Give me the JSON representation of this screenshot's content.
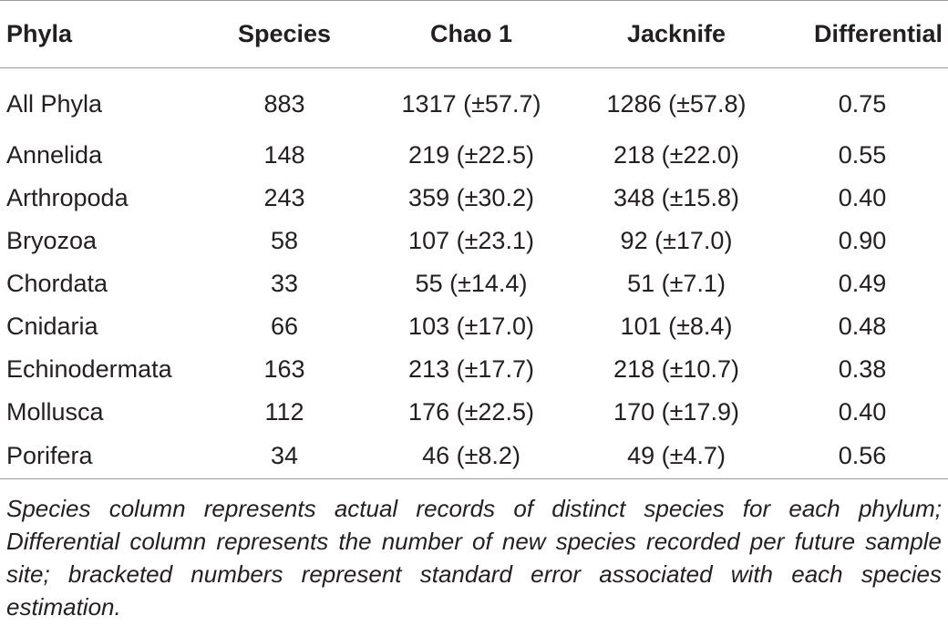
{
  "table": {
    "headers": [
      "Phyla",
      "Species",
      "Chao 1",
      "Jacknife",
      "Differential"
    ],
    "rows": [
      [
        "All Phyla",
        "883",
        "1317 (±57.7)",
        "1286 (±57.8)",
        "0.75"
      ],
      [
        "Annelida",
        "148",
        "219 (±22.5)",
        "218 (±22.0)",
        "0.55"
      ],
      [
        "Arthropoda",
        "243",
        "359 (±30.2)",
        "348 (±15.8)",
        "0.40"
      ],
      [
        "Bryozoa",
        "58",
        "107 (±23.1)",
        "92 (±17.0)",
        "0.90"
      ],
      [
        "Chordata",
        "33",
        "55 (±14.4)",
        "51 (±7.1)",
        "0.49"
      ],
      [
        "Cnidaria",
        "66",
        "103 (±17.0)",
        "101 (±8.4)",
        "0.48"
      ],
      [
        "Echinodermata",
        "163",
        "213 (±17.7)",
        "218 (±10.7)",
        "0.38"
      ],
      [
        "Mollusca",
        "112",
        "176 (±22.5)",
        "170 (±17.9)",
        "0.40"
      ],
      [
        "Porifera",
        "34",
        "46 (±8.2)",
        "49 (±4.7)",
        "0.56"
      ]
    ]
  },
  "footnote": "Species column represents actual records of distinct species for each phylum; Differential column represents the number of new species recorded per future sample site; bracketed numbers represent standard error associated with each species estimation."
}
